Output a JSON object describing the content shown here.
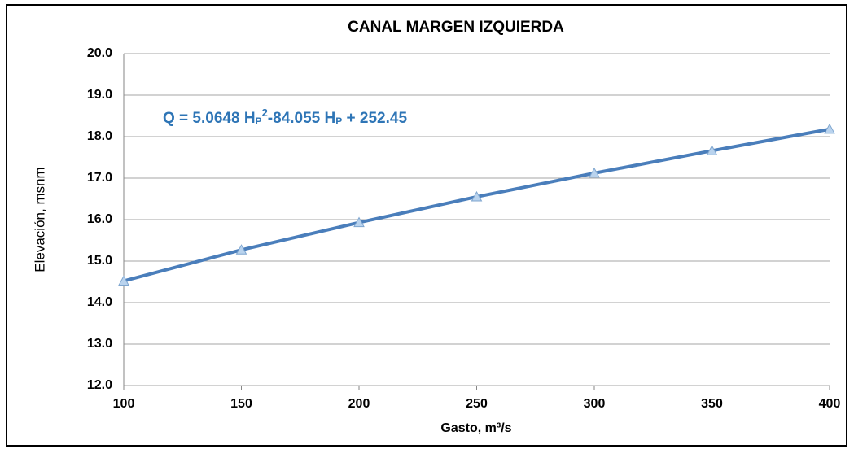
{
  "chart_data": {
    "type": "line",
    "title": "CANAL MARGEN IZQUIERDA",
    "xlabel": "Gasto, m³/s",
    "ylabel": "Elevación, msnm",
    "annotation": [
      "Q = 5.0648 H",
      "P",
      "2",
      "-84.055 H",
      "P",
      " + 252.45"
    ],
    "x": [
      100,
      150,
      200,
      250,
      300,
      350,
      400
    ],
    "series": [
      {
        "name": "Elevación",
        "color": "#4a7ebb",
        "marker_color": "#b9d3ee",
        "values": [
          14.52,
          15.27,
          15.93,
          16.55,
          17.12,
          17.66,
          18.18
        ]
      }
    ],
    "xlim": [
      100,
      400
    ],
    "xticks": [
      100,
      150,
      200,
      250,
      300,
      350,
      400
    ],
    "ylim": [
      12,
      20
    ],
    "yticks": [
      {
        "value": 12,
        "label": "12.0"
      },
      {
        "value": 13,
        "label": "13.0"
      },
      {
        "value": 14,
        "label": "14.0"
      },
      {
        "value": 15,
        "label": "15.0"
      },
      {
        "value": 16,
        "label": "16.0"
      },
      {
        "value": 17,
        "label": "17.0"
      },
      {
        "value": 18,
        "label": "18.0"
      },
      {
        "value": 19,
        "label": "19.0"
      },
      {
        "value": 20,
        "label": "20.0"
      }
    ],
    "grid": true
  }
}
